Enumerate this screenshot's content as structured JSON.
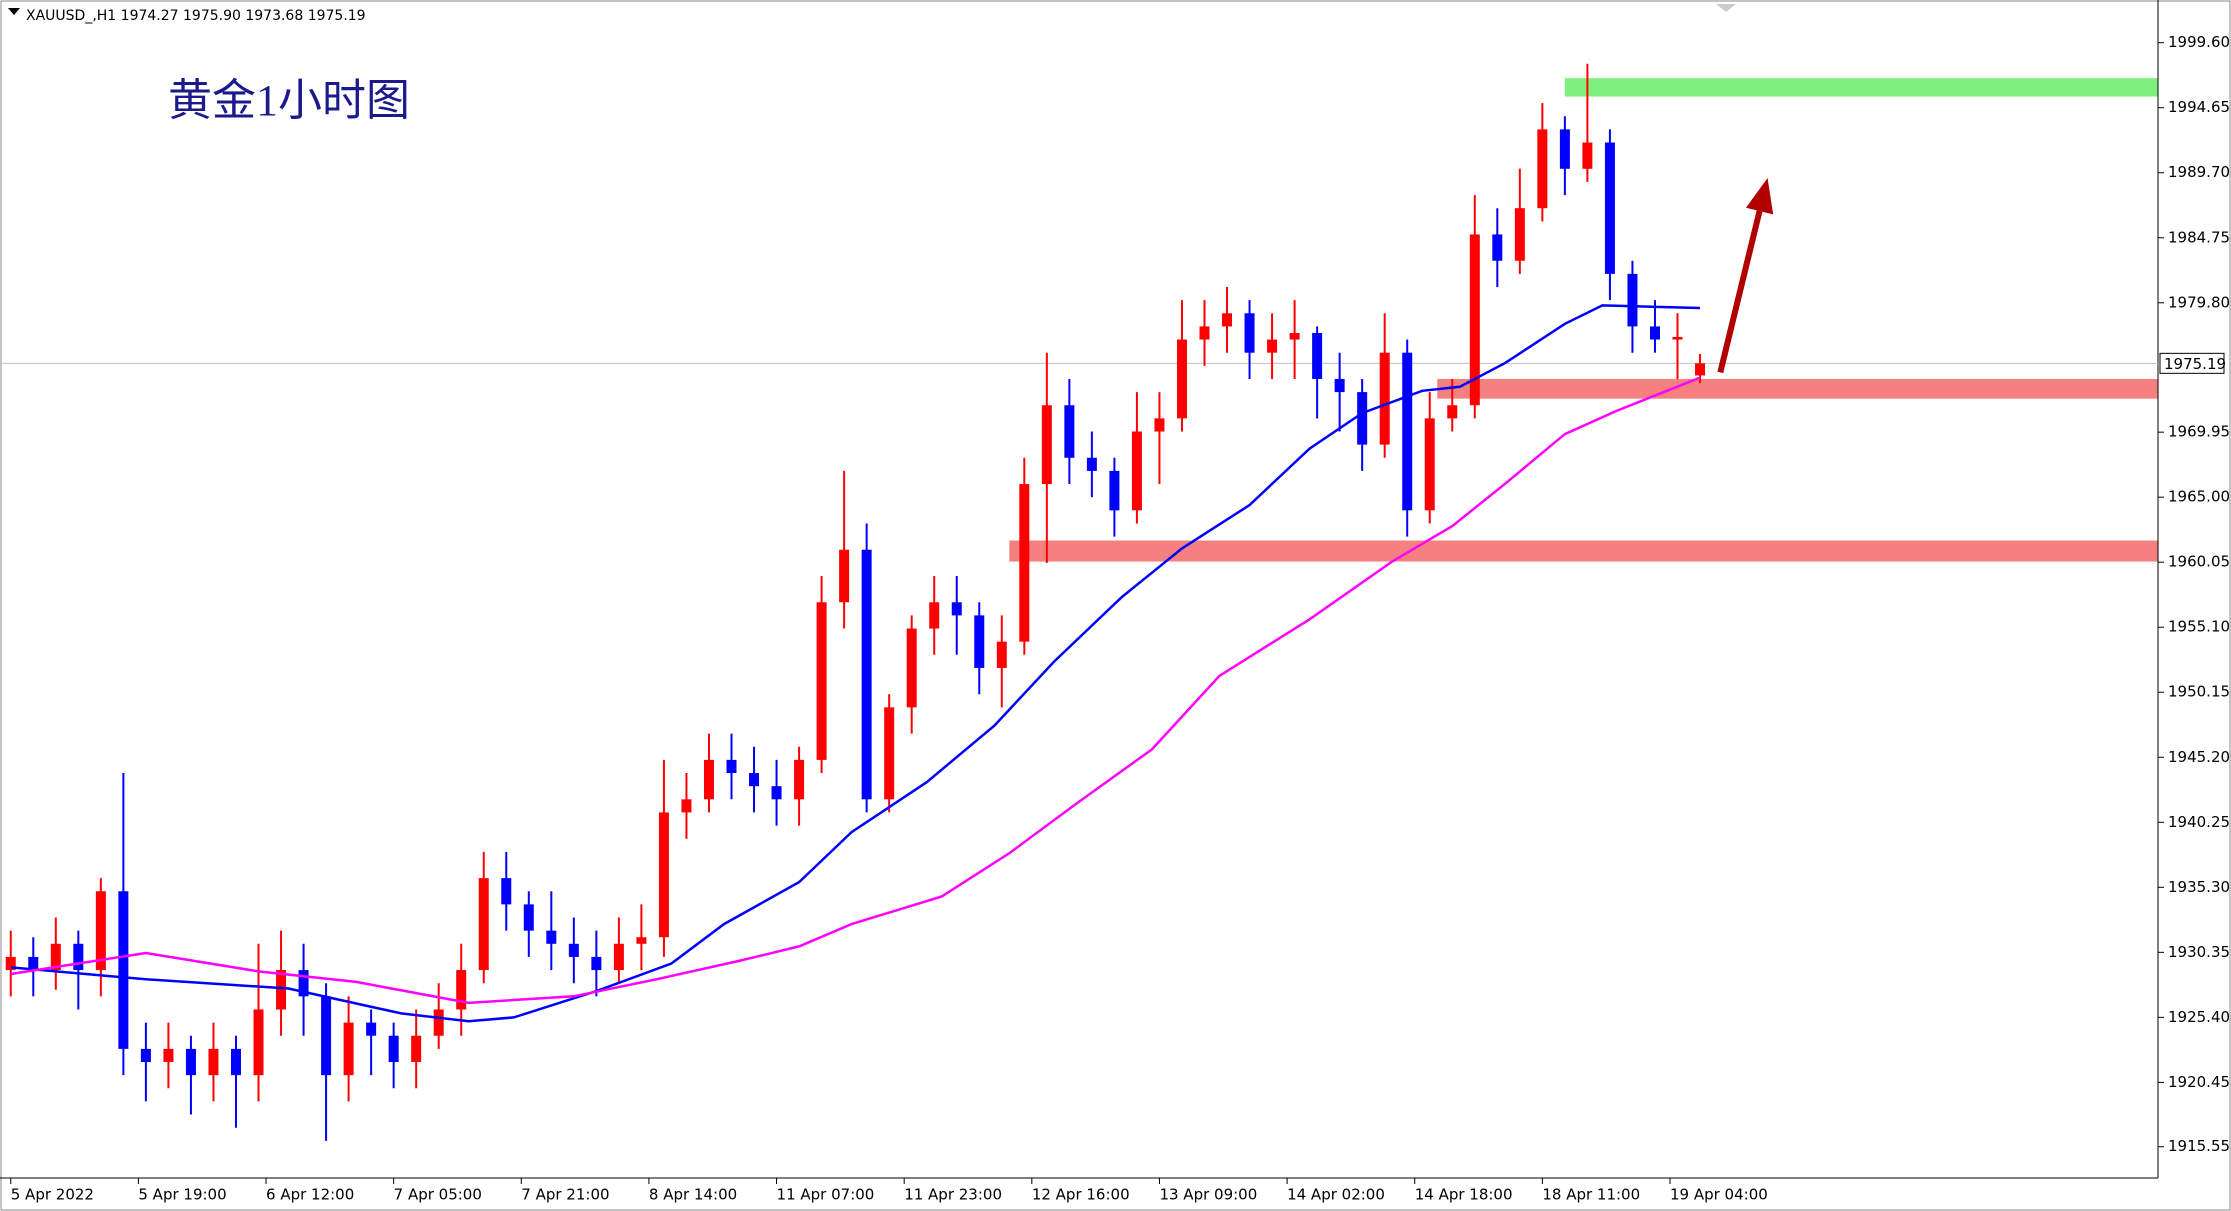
{
  "chart_data": {
    "type": "candlestick",
    "title": "黄金1小时图",
    "symbol_info": "XAUUSD_,H1  1974.27 1975.90 1973.68 1975.19",
    "up_color": "#ff0000",
    "down_color": "#0000ff",
    "x": [
      0,
      3,
      6,
      9,
      12,
      15,
      18,
      21,
      24,
      27,
      30,
      33,
      36,
      39,
      42,
      45,
      48,
      51,
      54,
      57,
      60,
      63,
      66,
      69,
      72,
      75,
      78,
      81,
      84,
      87,
      90,
      93,
      96,
      99,
      102,
      105,
      108,
      111,
      114,
      117,
      120,
      123,
      126,
      129,
      132,
      135,
      138,
      141,
      144,
      147,
      150,
      153,
      156,
      159,
      162,
      165,
      168,
      171,
      174,
      177,
      180,
      183,
      186,
      189,
      192,
      195,
      198,
      201,
      204,
      207,
      210,
      213,
      216,
      219,
      222,
      225
    ],
    "ohlc": [
      [
        1929,
        1932,
        1927,
        1930
      ],
      [
        1930,
        1931.5,
        1927,
        1929
      ],
      [
        1929,
        1933,
        1927.5,
        1931
      ],
      [
        1931,
        1932,
        1926,
        1929
      ],
      [
        1929,
        1936,
        1927,
        1935
      ],
      [
        1935,
        1944,
        1921,
        1923
      ],
      [
        1923,
        1925,
        1919,
        1922
      ],
      [
        1922,
        1925,
        1920,
        1923
      ],
      [
        1923,
        1924,
        1918,
        1921
      ],
      [
        1921,
        1925,
        1919,
        1923
      ],
      [
        1923,
        1924,
        1917,
        1921
      ],
      [
        1921,
        1931,
        1919,
        1926
      ],
      [
        1926,
        1932,
        1924,
        1929
      ],
      [
        1929,
        1931,
        1924,
        1927
      ],
      [
        1927,
        1928,
        1916,
        1921
      ],
      [
        1921,
        1927,
        1919,
        1925
      ],
      [
        1925,
        1926,
        1921,
        1924
      ],
      [
        1924,
        1925,
        1920,
        1922
      ],
      [
        1922,
        1926,
        1920,
        1924
      ],
      [
        1924,
        1928,
        1923,
        1926
      ],
      [
        1926,
        1931,
        1924,
        1929
      ],
      [
        1929,
        1938,
        1928,
        1936
      ],
      [
        1936,
        1938,
        1932,
        1934
      ],
      [
        1934,
        1935,
        1930,
        1932
      ],
      [
        1932,
        1935,
        1929,
        1931
      ],
      [
        1931,
        1933,
        1928,
        1930
      ],
      [
        1930,
        1932,
        1927,
        1929
      ],
      [
        1929,
        1933,
        1928,
        1931
      ],
      [
        1931,
        1934,
        1929,
        1931.5
      ],
      [
        1931.5,
        1945,
        1930,
        1941
      ],
      [
        1941,
        1944,
        1939,
        1942
      ],
      [
        1942,
        1947,
        1941,
        1945
      ],
      [
        1945,
        1947,
        1942,
        1944
      ],
      [
        1944,
        1946,
        1941,
        1943
      ],
      [
        1943,
        1945,
        1940,
        1942
      ],
      [
        1942,
        1946,
        1940,
        1945
      ],
      [
        1945,
        1959,
        1944,
        1957
      ],
      [
        1957,
        1967,
        1955,
        1961
      ],
      [
        1961,
        1963,
        1941,
        1942
      ],
      [
        1942,
        1950,
        1941,
        1949
      ],
      [
        1949,
        1956,
        1947,
        1955
      ],
      [
        1955,
        1959,
        1953,
        1957
      ],
      [
        1957,
        1959,
        1953,
        1956
      ],
      [
        1956,
        1957,
        1950,
        1952
      ],
      [
        1952,
        1956,
        1949,
        1954
      ],
      [
        1954,
        1968,
        1953,
        1966
      ],
      [
        1966,
        1976,
        1960,
        1972
      ],
      [
        1972,
        1974,
        1966,
        1968
      ],
      [
        1968,
        1970,
        1965,
        1967
      ],
      [
        1967,
        1968,
        1962,
        1964
      ],
      [
        1964,
        1973,
        1963,
        1970
      ],
      [
        1970,
        1973,
        1966,
        1971
      ],
      [
        1971,
        1980,
        1970,
        1977
      ],
      [
        1977,
        1980,
        1975,
        1978
      ],
      [
        1978,
        1981,
        1976,
        1979
      ],
      [
        1979,
        1980,
        1974,
        1976
      ],
      [
        1976,
        1979,
        1974,
        1977
      ],
      [
        1977,
        1980,
        1974,
        1977.5
      ],
      [
        1977.5,
        1978,
        1971,
        1974
      ],
      [
        1974,
        1976,
        1970,
        1973
      ],
      [
        1973,
        1974,
        1967,
        1969
      ],
      [
        1969,
        1979,
        1968,
        1976
      ],
      [
        1976,
        1977,
        1962,
        1964
      ],
      [
        1964,
        1973,
        1963,
        1971
      ],
      [
        1971,
        1974,
        1970,
        1972
      ],
      [
        1972,
        1988,
        1971,
        1985
      ],
      [
        1985,
        1987,
        1981,
        1983
      ],
      [
        1983,
        1990,
        1982,
        1987
      ],
      [
        1987,
        1995,
        1986,
        1993
      ],
      [
        1993,
        1994,
        1988,
        1990
      ],
      [
        1990,
        1998,
        1989,
        1992
      ],
      [
        1992,
        1993,
        1980,
        1982
      ],
      [
        1982,
        1983,
        1976,
        1978
      ],
      [
        1978,
        1980,
        1976,
        1977
      ],
      [
        1977,
        1979,
        1974,
        1977.2
      ],
      [
        1974.27,
        1975.9,
        1973.68,
        1975.19
      ]
    ],
    "ma": [
      {
        "color": "#0000ff",
        "x": [
          0,
          18,
          37,
          52,
          61,
          67,
          78,
          88,
          95,
          105,
          112,
          122,
          131,
          139,
          148,
          156,
          165,
          173,
          180,
          188,
          193,
          199,
          207,
          212,
          225
        ],
        "values": [
          1929.2,
          1928.3,
          1927.6,
          1925.7,
          1925.1,
          1925.4,
          1927.4,
          1929.5,
          1932.5,
          1935.7,
          1939.5,
          1943.3,
          1947.6,
          1952.5,
          1957.4,
          1961.1,
          1964.4,
          1968.7,
          1971.4,
          1973.1,
          1973.4,
          1975.2,
          1978.2,
          1979.6,
          1979.4
        ]
      },
      {
        "color": "#ff00ff",
        "x": [
          0,
          18,
          33,
          46,
          61,
          75,
          86,
          97,
          105,
          112,
          124,
          133,
          142,
          152,
          161,
          173,
          184,
          192,
          199,
          207,
          214,
          225
        ],
        "values": [
          1928.7,
          1930.3,
          1928.9,
          1928.1,
          1926.5,
          1927.0,
          1928.3,
          1929.7,
          1930.8,
          1932.5,
          1934.6,
          1937.9,
          1941.7,
          1945.8,
          1951.4,
          1955.7,
          1960.1,
          1962.8,
          1966.0,
          1969.8,
          1971.6,
          1974.1
        ]
      }
    ],
    "zones": [
      {
        "from_x": 207,
        "range": [
          1995.5,
          1996.9
        ],
        "color": "#7ef07e"
      },
      {
        "from_x": 190,
        "range": [
          1972.5,
          1974.0
        ],
        "color": "#f58080"
      },
      {
        "from_x": 133,
        "range": [
          1960.1,
          1961.7
        ],
        "color": "#f58080"
      }
    ],
    "arrow": {
      "x": [
        227.7,
        234
      ],
      "y": [
        1974.5,
        1989.3
      ],
      "color": "#b00000"
    },
    "last_price": 1975.19,
    "xlim": [
      -0.5,
      286
    ],
    "ylim": [
      1913.17,
      2002.85
    ],
    "yticks": [
      {
        "value": 1999.6,
        "label": "1999.60"
      },
      1994.65,
      {
        "value": 1989.7,
        "label": "1989.70"
      },
      1984.75,
      {
        "value": 1979.8,
        "label": "1979.80"
      },
      1969.95,
      {
        "value": 1965,
        "label": "1965.00"
      },
      1960.05,
      {
        "value": 1955.1,
        "label": "1955.10"
      },
      1950.15,
      {
        "value": 1945.2,
        "label": "1945.20"
      },
      1940.25,
      {
        "value": 1935.3,
        "label": "1935.30"
      },
      1930.35,
      {
        "value": 1925.4,
        "label": "1925.40"
      },
      1920.45,
      1915.55
    ],
    "xticks": [
      {
        "value": 0,
        "label": "5 Apr 2022"
      },
      {
        "value": 17,
        "label": "5 Apr 19:00"
      },
      {
        "value": 34,
        "label": "6 Apr 12:00"
      },
      {
        "value": 51,
        "label": "7 Apr 05:00"
      },
      {
        "value": 68,
        "label": "7 Apr 21:00"
      },
      {
        "value": 85,
        "label": "8 Apr 14:00"
      },
      {
        "value": 102,
        "label": "11 Apr 07:00"
      },
      {
        "value": 119,
        "label": "11 Apr 23:00"
      },
      {
        "value": 136,
        "label": "12 Apr 16:00"
      },
      {
        "value": 153,
        "label": "13 Apr 09:00"
      },
      {
        "value": 170,
        "label": "14 Apr 02:00"
      },
      {
        "value": 187,
        "label": "14 Apr 18:00"
      },
      {
        "value": 204,
        "label": "18 Apr 11:00"
      },
      {
        "value": 221,
        "label": "19 Apr 04:00"
      }
    ]
  }
}
